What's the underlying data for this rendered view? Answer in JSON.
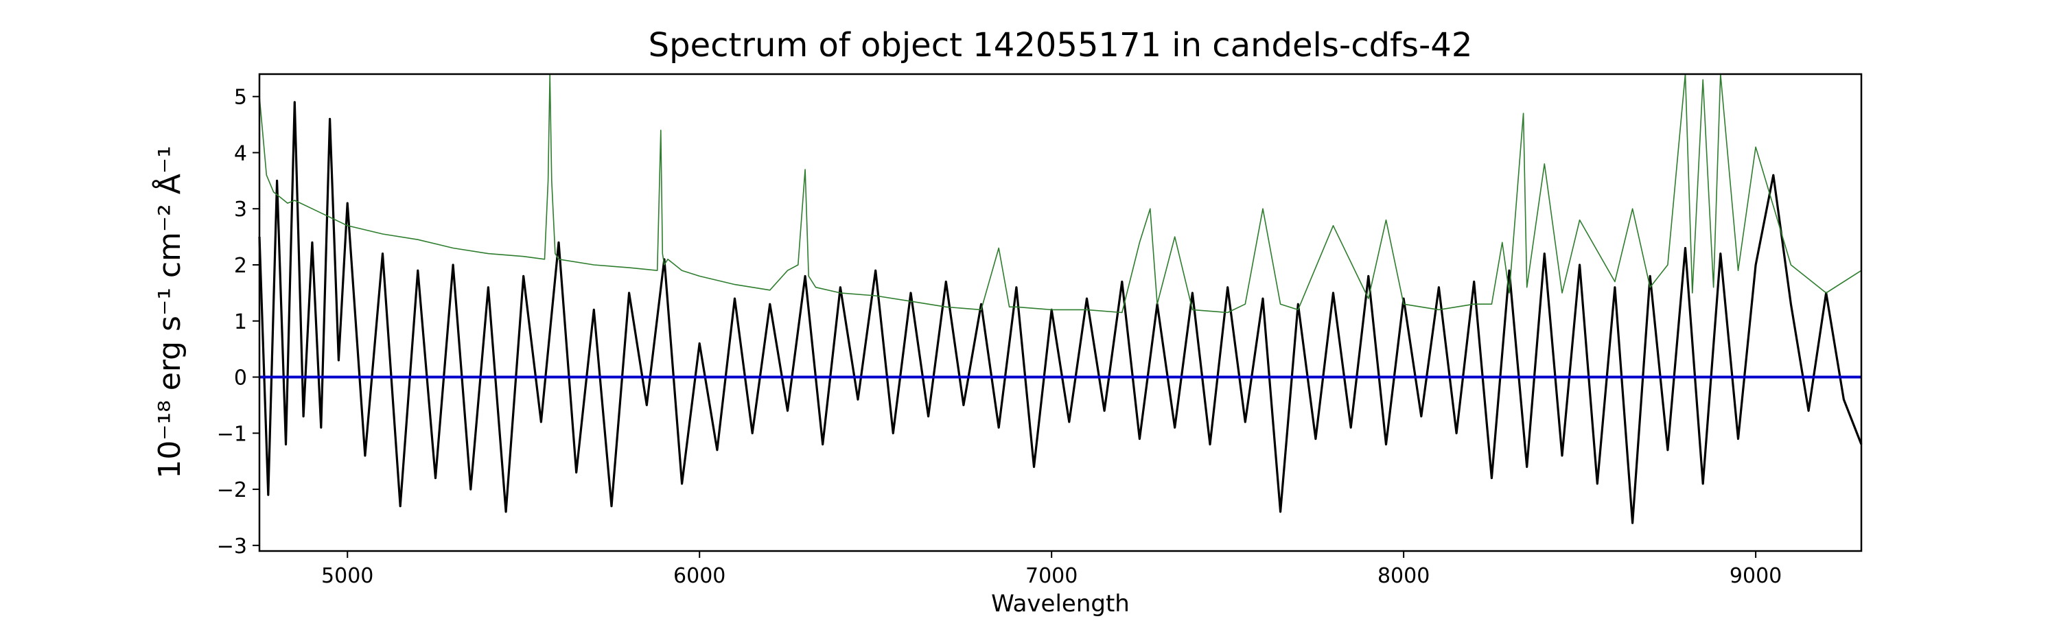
{
  "chart_data": {
    "type": "line",
    "title": "Spectrum of object 142055171 in candels-cdfs-42",
    "xlabel": "Wavelength",
    "ylabel": "10⁻¹⁸ erg s⁻¹ cm⁻² Å⁻¹",
    "xlim": [
      4750,
      9300
    ],
    "ylim": [
      -3.1,
      5.4
    ],
    "xticks": [
      5000,
      6000,
      7000,
      8000,
      9000
    ],
    "yticks": [
      -3,
      -2,
      -1,
      0,
      1,
      2,
      3,
      4,
      5
    ],
    "grid": false,
    "series": [
      {
        "color": "#000000",
        "x": [
          4750,
          4775,
          4800,
          4825,
          4850,
          4875,
          4900,
          4925,
          4950,
          4975,
          5000,
          5050,
          5100,
          5150,
          5200,
          5250,
          5300,
          5350,
          5400,
          5450,
          5500,
          5550,
          5600,
          5650,
          5700,
          5750,
          5800,
          5850,
          5900,
          5950,
          6000,
          6050,
          6100,
          6150,
          6200,
          6250,
          6300,
          6350,
          6400,
          6450,
          6500,
          6550,
          6600,
          6650,
          6700,
          6750,
          6800,
          6850,
          6900,
          6950,
          7000,
          7050,
          7100,
          7150,
          7200,
          7250,
          7300,
          7350,
          7400,
          7450,
          7500,
          7550,
          7600,
          7650,
          7700,
          7750,
          7800,
          7850,
          7900,
          7950,
          8000,
          8050,
          8100,
          8150,
          8200,
          8250,
          8300,
          8350,
          8400,
          8450,
          8500,
          8550,
          8600,
          8650,
          8700,
          8750,
          8800,
          8850,
          8900,
          8950,
          9000,
          9050,
          9100,
          9150,
          9200,
          9250,
          9300
        ],
        "y": [
          2.5,
          -2.1,
          3.5,
          -1.2,
          4.9,
          -0.7,
          2.4,
          -0.9,
          4.6,
          0.3,
          3.1,
          -1.4,
          2.2,
          -2.3,
          1.9,
          -1.8,
          2.0,
          -2.0,
          1.6,
          -2.4,
          1.8,
          -0.8,
          2.4,
          -1.7,
          1.2,
          -2.3,
          1.5,
          -0.5,
          2.1,
          -1.9,
          0.6,
          -1.3,
          1.4,
          -1.0,
          1.3,
          -0.6,
          1.8,
          -1.2,
          1.6,
          -0.4,
          1.9,
          -1.0,
          1.5,
          -0.7,
          1.7,
          -0.5,
          1.3,
          -0.9,
          1.6,
          -1.6,
          1.2,
          -0.8,
          1.4,
          -0.6,
          1.7,
          -1.1,
          1.3,
          -0.9,
          1.5,
          -1.2,
          1.6,
          -0.8,
          1.4,
          -2.4,
          1.3,
          -1.1,
          1.5,
          -0.9,
          1.8,
          -1.2,
          1.4,
          -0.7,
          1.6,
          -1.0,
          1.7,
          -1.8,
          1.9,
          -1.6,
          2.2,
          -1.4,
          2.0,
          -1.9,
          1.6,
          -2.6,
          1.8,
          -1.3,
          2.3,
          -1.9,
          2.2,
          -1.1,
          2.0,
          3.6,
          1.3,
          -0.6,
          1.5,
          -0.4,
          -1.2
        ]
      },
      {
        "color": "#2e7d2e",
        "x": [
          4750,
          4770,
          4790,
          4810,
          4830,
          4850,
          4900,
          5000,
          5100,
          5200,
          5300,
          5400,
          5500,
          5560,
          5570,
          5575,
          5580,
          5590,
          5600,
          5700,
          5800,
          5880,
          5890,
          5895,
          5900,
          5910,
          5950,
          6000,
          6100,
          6200,
          6250,
          6280,
          6300,
          6310,
          6330,
          6400,
          6500,
          6600,
          6700,
          6800,
          6850,
          6880,
          6900,
          7000,
          7100,
          7200,
          7250,
          7280,
          7300,
          7350,
          7400,
          7500,
          7550,
          7600,
          7650,
          7700,
          7800,
          7900,
          7950,
          8000,
          8100,
          8200,
          8250,
          8280,
          8300,
          8340,
          8350,
          8400,
          8450,
          8500,
          8600,
          8650,
          8700,
          8750,
          8800,
          8820,
          8850,
          8880,
          8900,
          8950,
          9000,
          9100,
          9200,
          9300
        ],
        "y": [
          5.0,
          3.6,
          3.3,
          3.2,
          3.1,
          3.15,
          3.0,
          2.7,
          2.55,
          2.45,
          2.3,
          2.2,
          2.15,
          2.1,
          3.5,
          5.4,
          3.5,
          2.2,
          2.1,
          2.0,
          1.95,
          1.9,
          4.4,
          2.2,
          2.0,
          2.1,
          1.9,
          1.8,
          1.65,
          1.55,
          1.9,
          2.0,
          3.7,
          1.8,
          1.6,
          1.5,
          1.45,
          1.35,
          1.25,
          1.2,
          2.3,
          1.25,
          1.25,
          1.2,
          1.2,
          1.15,
          2.4,
          3.0,
          1.3,
          2.5,
          1.2,
          1.15,
          1.3,
          3.0,
          1.3,
          1.2,
          2.7,
          1.4,
          2.8,
          1.3,
          1.2,
          1.3,
          1.3,
          2.4,
          1.5,
          4.7,
          1.6,
          3.8,
          1.5,
          2.8,
          1.7,
          3.0,
          1.6,
          2.0,
          5.4,
          1.5,
          5.3,
          1.6,
          5.4,
          1.9,
          4.1,
          2.0,
          1.5,
          1.9
        ]
      },
      {
        "color": "#0000cc",
        "x": [
          4750,
          9300
        ],
        "y": [
          0,
          0
        ]
      }
    ]
  }
}
